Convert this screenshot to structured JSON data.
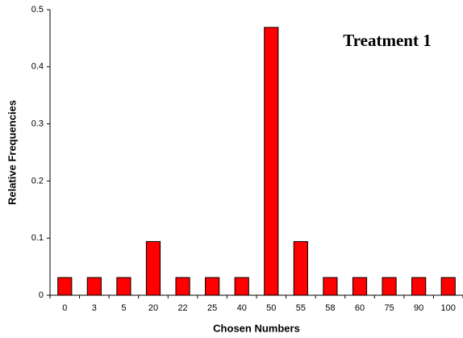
{
  "chart_data": {
    "type": "bar",
    "title": "Treatment 1",
    "x_label": "Chosen Numbers",
    "y_label": "Relative Frequencies",
    "categories": [
      "0",
      "3",
      "5",
      "20",
      "22",
      "25",
      "40",
      "50",
      "55",
      "58",
      "60",
      "75",
      "90",
      "100"
    ],
    "values": [
      0.031,
      0.031,
      0.031,
      0.094,
      0.031,
      0.031,
      0.031,
      0.469,
      0.094,
      0.031,
      0.031,
      0.031,
      0.031,
      0.031
    ],
    "color": "#ff0000",
    "ylim": [
      0,
      0.5
    ],
    "yticks": [
      0,
      0.1,
      0.2,
      0.3,
      0.4,
      0.5
    ],
    "grid": false
  }
}
